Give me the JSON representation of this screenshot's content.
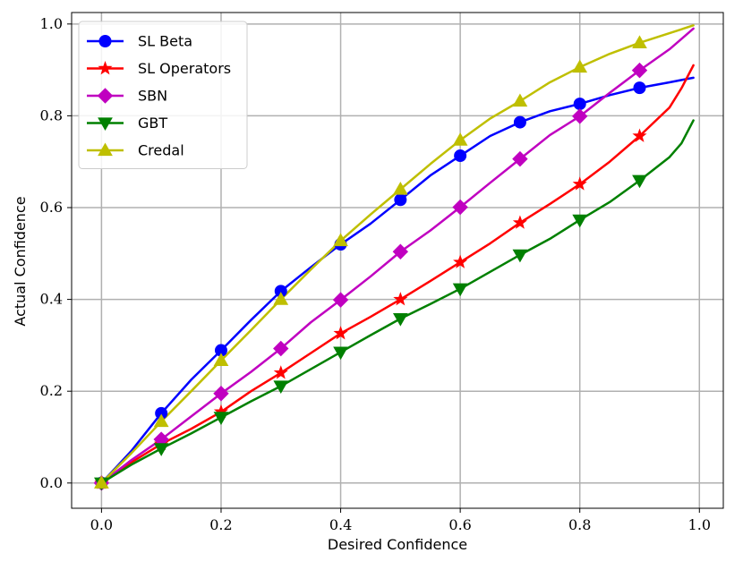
{
  "chart_data": {
    "type": "line",
    "title": "",
    "xlabel": "Desired Confidence",
    "ylabel": "Actual Confidence",
    "xlim": [
      -0.05,
      1.04
    ],
    "ylim": [
      -0.055,
      1.025
    ],
    "xticks": [
      0.0,
      0.2,
      0.4,
      0.6,
      0.8,
      1.0
    ],
    "yticks": [
      0.0,
      0.2,
      0.4,
      0.6,
      0.8,
      1.0
    ],
    "xtick_labels": [
      "0.0",
      "0.2",
      "0.4",
      "0.6",
      "0.8",
      "1.0"
    ],
    "ytick_labels": [
      "0.0",
      "0.2",
      "0.4",
      "0.6",
      "0.8",
      "1.0"
    ],
    "grid": true,
    "legend_position": "top-left",
    "series": [
      {
        "name": "SL Beta",
        "color": "#0000ff",
        "marker": "circle",
        "x": [
          0.0,
          0.1,
          0.2,
          0.3,
          0.4,
          0.5,
          0.6,
          0.7,
          0.8,
          0.9
        ],
        "y": [
          0.0,
          0.152,
          0.289,
          0.418,
          0.52,
          0.617,
          0.713,
          0.786,
          0.826,
          0.861
        ],
        "line_x": [
          0.0,
          0.05,
          0.1,
          0.15,
          0.2,
          0.25,
          0.3,
          0.35,
          0.4,
          0.45,
          0.5,
          0.55,
          0.6,
          0.65,
          0.7,
          0.75,
          0.8,
          0.85,
          0.9,
          0.95,
          0.99
        ],
        "line_y": [
          0.0,
          0.07,
          0.152,
          0.225,
          0.289,
          0.355,
          0.418,
          0.47,
          0.52,
          0.565,
          0.617,
          0.67,
          0.713,
          0.756,
          0.786,
          0.81,
          0.826,
          0.845,
          0.861,
          0.873,
          0.883
        ]
      },
      {
        "name": "SL Operators",
        "color": "#ff0000",
        "marker": "star",
        "x": [
          0.0,
          0.1,
          0.2,
          0.3,
          0.4,
          0.5,
          0.6,
          0.7,
          0.8,
          0.9
        ],
        "y": [
          0.0,
          0.085,
          0.155,
          0.24,
          0.326,
          0.4,
          0.481,
          0.567,
          0.651,
          0.756
        ],
        "line_x": [
          0.0,
          0.05,
          0.1,
          0.15,
          0.2,
          0.25,
          0.3,
          0.35,
          0.4,
          0.45,
          0.5,
          0.55,
          0.6,
          0.65,
          0.7,
          0.75,
          0.8,
          0.85,
          0.9,
          0.95,
          0.97,
          0.99
        ],
        "line_y": [
          0.0,
          0.045,
          0.085,
          0.118,
          0.155,
          0.2,
          0.24,
          0.283,
          0.326,
          0.362,
          0.4,
          0.44,
          0.481,
          0.522,
          0.567,
          0.608,
          0.651,
          0.7,
          0.756,
          0.818,
          0.86,
          0.91
        ]
      },
      {
        "name": "SBN",
        "color": "#c000c0",
        "marker": "diamond",
        "x": [
          0.0,
          0.1,
          0.2,
          0.3,
          0.4,
          0.5,
          0.6,
          0.7,
          0.8,
          0.9
        ],
        "y": [
          0.0,
          0.095,
          0.195,
          0.293,
          0.399,
          0.504,
          0.601,
          0.706,
          0.799,
          0.899
        ],
        "line_x": [
          0.0,
          0.05,
          0.1,
          0.15,
          0.2,
          0.25,
          0.3,
          0.35,
          0.4,
          0.45,
          0.5,
          0.55,
          0.6,
          0.65,
          0.7,
          0.75,
          0.8,
          0.85,
          0.9,
          0.95,
          0.99
        ],
        "line_y": [
          0.0,
          0.05,
          0.095,
          0.145,
          0.195,
          0.242,
          0.293,
          0.35,
          0.399,
          0.45,
          0.504,
          0.55,
          0.601,
          0.654,
          0.706,
          0.758,
          0.799,
          0.85,
          0.899,
          0.945,
          0.99
        ]
      },
      {
        "name": "GBT",
        "color": "#008000",
        "marker": "triangle-down",
        "x": [
          0.0,
          0.1,
          0.2,
          0.3,
          0.4,
          0.5,
          0.6,
          0.7,
          0.8,
          0.9
        ],
        "y": [
          0.0,
          0.075,
          0.143,
          0.211,
          0.285,
          0.358,
          0.423,
          0.497,
          0.573,
          0.659
        ],
        "line_x": [
          0.0,
          0.05,
          0.1,
          0.15,
          0.2,
          0.25,
          0.3,
          0.35,
          0.4,
          0.45,
          0.5,
          0.55,
          0.6,
          0.65,
          0.7,
          0.75,
          0.8,
          0.85,
          0.9,
          0.95,
          0.97,
          0.99
        ],
        "line_y": [
          0.0,
          0.04,
          0.075,
          0.108,
          0.143,
          0.178,
          0.211,
          0.248,
          0.285,
          0.322,
          0.358,
          0.39,
          0.423,
          0.46,
          0.497,
          0.532,
          0.573,
          0.612,
          0.659,
          0.71,
          0.74,
          0.79
        ]
      },
      {
        "name": "Credal",
        "color": "#bfbf00",
        "marker": "triangle-up",
        "x": [
          0.0,
          0.1,
          0.2,
          0.3,
          0.4,
          0.5,
          0.6,
          0.7,
          0.8,
          0.9
        ],
        "y": [
          0.0,
          0.134,
          0.267,
          0.4,
          0.528,
          0.64,
          0.747,
          0.832,
          0.906,
          0.959
        ],
        "line_x": [
          0.0,
          0.05,
          0.1,
          0.15,
          0.2,
          0.25,
          0.3,
          0.35,
          0.4,
          0.45,
          0.5,
          0.55,
          0.6,
          0.65,
          0.7,
          0.75,
          0.8,
          0.85,
          0.9,
          0.95,
          0.99
        ],
        "line_y": [
          0.0,
          0.065,
          0.134,
          0.2,
          0.267,
          0.333,
          0.4,
          0.465,
          0.528,
          0.585,
          0.64,
          0.695,
          0.747,
          0.794,
          0.832,
          0.873,
          0.906,
          0.935,
          0.959,
          0.98,
          0.997
        ]
      }
    ]
  }
}
